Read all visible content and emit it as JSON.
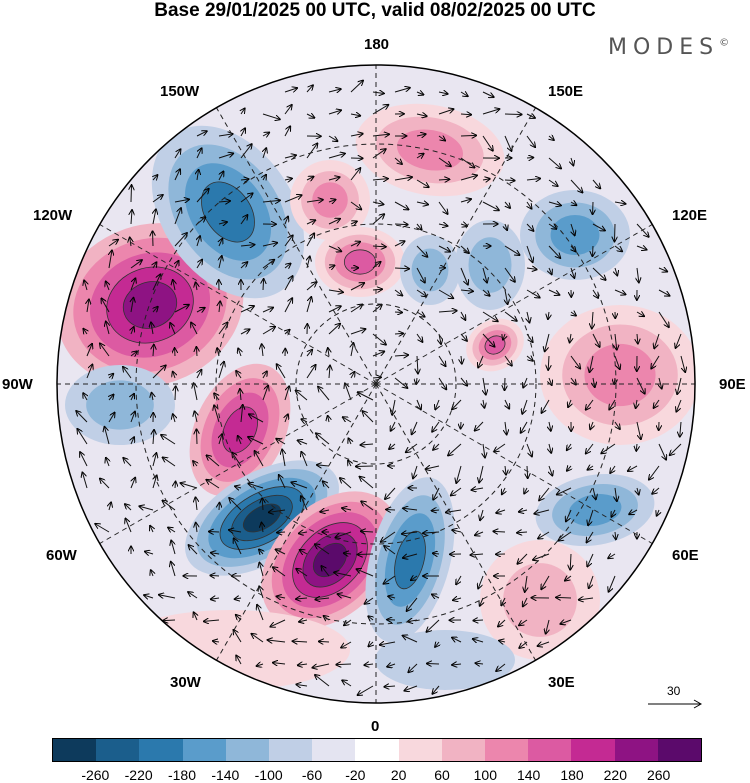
{
  "title": "Base 29/01/2025 00 UTC, valid 08/02/2025 00 UTC",
  "brand": "MODES",
  "brand_mark": "©",
  "longitude_labels": {
    "lon_180": "180",
    "lon_150E": "150E",
    "lon_120E": "120E",
    "lon_90E": "90E",
    "lon_60E": "60E",
    "lon_30E": "30E",
    "lon_0": "0",
    "lon_30W": "30W",
    "lon_60W": "60W",
    "lon_90W": "90W",
    "lon_120W": "120W",
    "lon_150W": "150W"
  },
  "reference_vector": {
    "value": "30"
  },
  "colorbar": {
    "colors": [
      "#0d3a5c",
      "#1b5e8c",
      "#2b79ad",
      "#5a9ccb",
      "#8fb7d9",
      "#c0cfe6",
      "#e4e4f1",
      "#ffffff",
      "#f8d8dd",
      "#f1b3c3",
      "#ec86ad",
      "#dc5aa2",
      "#c42a93",
      "#8e1383",
      "#5b0a6b"
    ],
    "tick_labels": [
      "-260",
      "-220",
      "-180",
      "-140",
      "-100",
      "-60",
      "-20",
      "20",
      "60",
      "100",
      "140",
      "180",
      "220",
      "260"
    ]
  }
}
